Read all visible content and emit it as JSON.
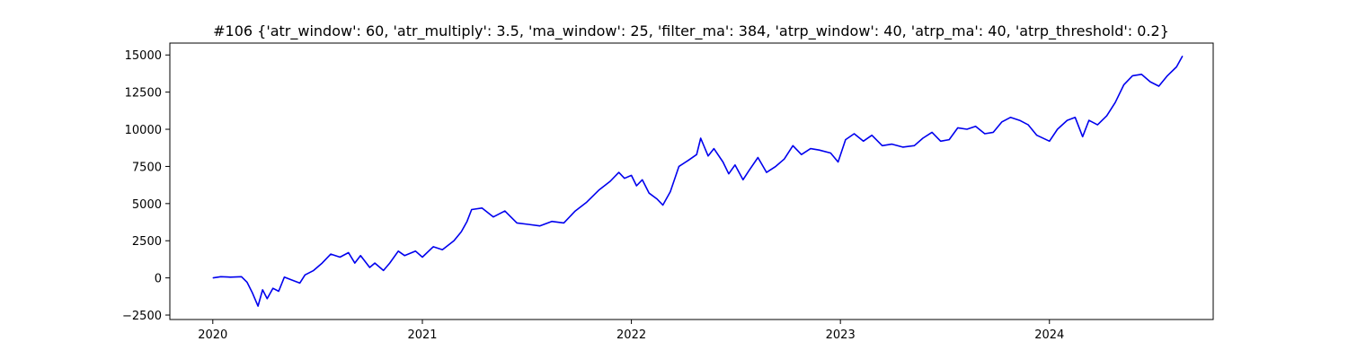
{
  "chart_data": {
    "type": "line",
    "title": "#106 {'atr_window': 60, 'atr_multiply': 3.5, 'ma_window': 25, 'filter_ma': 384, 'atrp_window': 40, 'atrp_ma': 40, 'atrp_threshold': 0.2}",
    "xlabel": "",
    "ylabel": "",
    "xlim": [
      "2019-10-18",
      "2024-10-13"
    ],
    "ylim": [
      -2800,
      15800
    ],
    "grid": false,
    "x_ticks": [
      {
        "label": "2020",
        "value": "2020-01-01"
      },
      {
        "label": "2021",
        "value": "2021-01-01"
      },
      {
        "label": "2022",
        "value": "2022-01-01"
      },
      {
        "label": "2023",
        "value": "2023-01-01"
      },
      {
        "label": "2024",
        "value": "2024-01-01"
      }
    ],
    "y_ticks": [
      {
        "label": "−2500",
        "value": -2500
      },
      {
        "label": "0",
        "value": 0
      },
      {
        "label": "2500",
        "value": 2500
      },
      {
        "label": "5000",
        "value": 5000
      },
      {
        "label": "7500",
        "value": 7500
      },
      {
        "label": "10000",
        "value": 10000
      },
      {
        "label": "12500",
        "value": 12500
      },
      {
        "label": "15000",
        "value": 15000
      }
    ],
    "series": [
      {
        "color": "#0000ee",
        "points": [
          [
            "2020-01-02",
            0
          ],
          [
            "2020-01-15",
            80
          ],
          [
            "2020-02-01",
            50
          ],
          [
            "2020-02-20",
            80
          ],
          [
            "2020-03-01",
            -300
          ],
          [
            "2020-03-10",
            -1000
          ],
          [
            "2020-03-20",
            -1900
          ],
          [
            "2020-03-28",
            -800
          ],
          [
            "2020-04-05",
            -1400
          ],
          [
            "2020-04-15",
            -700
          ],
          [
            "2020-04-25",
            -900
          ],
          [
            "2020-05-05",
            50
          ],
          [
            "2020-05-15",
            -100
          ],
          [
            "2020-06-01",
            -350
          ],
          [
            "2020-06-10",
            200
          ],
          [
            "2020-06-25",
            500
          ],
          [
            "2020-07-10",
            1000
          ],
          [
            "2020-07-25",
            1600
          ],
          [
            "2020-08-10",
            1400
          ],
          [
            "2020-08-25",
            1700
          ],
          [
            "2020-09-05",
            1000
          ],
          [
            "2020-09-15",
            1500
          ],
          [
            "2020-10-01",
            700
          ],
          [
            "2020-10-10",
            1000
          ],
          [
            "2020-10-25",
            500
          ],
          [
            "2020-11-05",
            1000
          ],
          [
            "2020-11-20",
            1800
          ],
          [
            "2020-12-01",
            1500
          ],
          [
            "2020-12-20",
            1800
          ],
          [
            "2021-01-01",
            1400
          ],
          [
            "2021-01-20",
            2100
          ],
          [
            "2021-02-05",
            1900
          ],
          [
            "2021-02-25",
            2500
          ],
          [
            "2021-03-10",
            3100
          ],
          [
            "2021-03-20",
            3800
          ],
          [
            "2021-03-28",
            4600
          ],
          [
            "2021-04-15",
            4700
          ],
          [
            "2021-05-05",
            4100
          ],
          [
            "2021-05-25",
            4500
          ],
          [
            "2021-06-15",
            3700
          ],
          [
            "2021-07-05",
            3600
          ],
          [
            "2021-07-25",
            3500
          ],
          [
            "2021-08-15",
            3800
          ],
          [
            "2021-09-05",
            3700
          ],
          [
            "2021-09-25",
            4500
          ],
          [
            "2021-10-15",
            5100
          ],
          [
            "2021-11-05",
            5900
          ],
          [
            "2021-11-25",
            6500
          ],
          [
            "2021-12-10",
            7100
          ],
          [
            "2021-12-20",
            6700
          ],
          [
            "2022-01-01",
            6900
          ],
          [
            "2022-01-10",
            6200
          ],
          [
            "2022-01-20",
            6600
          ],
          [
            "2022-02-01",
            5700
          ],
          [
            "2022-02-15",
            5300
          ],
          [
            "2022-02-25",
            4900
          ],
          [
            "2022-03-10",
            5800
          ],
          [
            "2022-03-25",
            7500
          ],
          [
            "2022-04-10",
            7900
          ],
          [
            "2022-04-25",
            8300
          ],
          [
            "2022-05-02",
            9400
          ],
          [
            "2022-05-15",
            8200
          ],
          [
            "2022-05-25",
            8700
          ],
          [
            "2022-06-10",
            7800
          ],
          [
            "2022-06-20",
            7000
          ],
          [
            "2022-07-01",
            7600
          ],
          [
            "2022-07-15",
            6600
          ],
          [
            "2022-07-25",
            7200
          ],
          [
            "2022-08-10",
            8100
          ],
          [
            "2022-08-25",
            7100
          ],
          [
            "2022-09-10",
            7500
          ],
          [
            "2022-09-25",
            8000
          ],
          [
            "2022-10-10",
            8900
          ],
          [
            "2022-10-25",
            8300
          ],
          [
            "2022-11-10",
            8700
          ],
          [
            "2022-11-25",
            8600
          ],
          [
            "2022-12-15",
            8400
          ],
          [
            "2022-12-28",
            7800
          ],
          [
            "2023-01-10",
            9300
          ],
          [
            "2023-01-25",
            9700
          ],
          [
            "2023-02-10",
            9200
          ],
          [
            "2023-02-25",
            9600
          ],
          [
            "2023-03-15",
            8900
          ],
          [
            "2023-04-01",
            9000
          ],
          [
            "2023-04-20",
            8800
          ],
          [
            "2023-05-10",
            8900
          ],
          [
            "2023-05-25",
            9400
          ],
          [
            "2023-06-10",
            9800
          ],
          [
            "2023-06-25",
            9200
          ],
          [
            "2023-07-10",
            9300
          ],
          [
            "2023-07-25",
            10100
          ],
          [
            "2023-08-10",
            10000
          ],
          [
            "2023-08-25",
            10200
          ],
          [
            "2023-09-10",
            9700
          ],
          [
            "2023-09-25",
            9800
          ],
          [
            "2023-10-10",
            10500
          ],
          [
            "2023-10-25",
            10800
          ],
          [
            "2023-11-10",
            10600
          ],
          [
            "2023-11-25",
            10300
          ],
          [
            "2023-12-10",
            9600
          ],
          [
            "2024-01-01",
            9200
          ],
          [
            "2024-01-15",
            10000
          ],
          [
            "2024-02-01",
            10600
          ],
          [
            "2024-02-15",
            10800
          ],
          [
            "2024-02-28",
            9500
          ],
          [
            "2024-03-10",
            10600
          ],
          [
            "2024-03-25",
            10300
          ],
          [
            "2024-04-10",
            10900
          ],
          [
            "2024-04-25",
            11800
          ],
          [
            "2024-05-10",
            13000
          ],
          [
            "2024-05-25",
            13600
          ],
          [
            "2024-06-10",
            13700
          ],
          [
            "2024-06-25",
            13200
          ],
          [
            "2024-07-10",
            12900
          ],
          [
            "2024-07-25",
            13600
          ],
          [
            "2024-08-10",
            14200
          ],
          [
            "2024-08-20",
            14900
          ]
        ]
      }
    ]
  }
}
